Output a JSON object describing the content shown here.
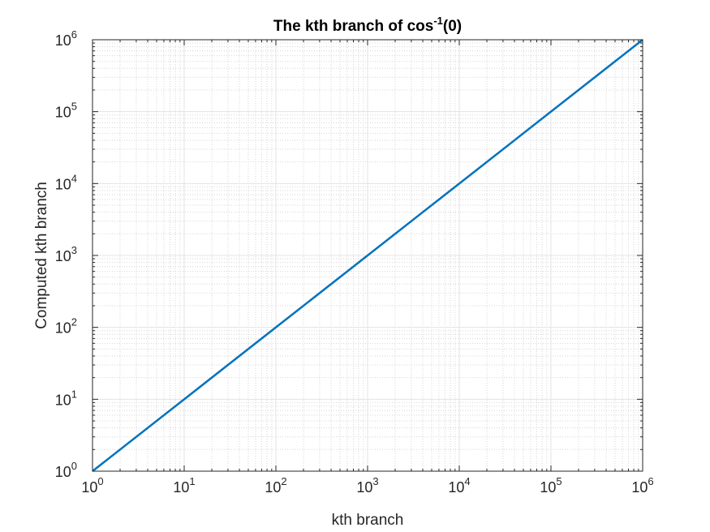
{
  "chart_data": {
    "type": "line",
    "title": "The kth branch of cos",
    "title_superscript": "-1",
    "title_suffix": "(0)",
    "xlabel": "kth branch",
    "ylabel": "Computed kth branch",
    "x_scale": "log",
    "y_scale": "log",
    "xlim": [
      1,
      1000000
    ],
    "ylim": [
      1,
      1000000
    ],
    "grid": true,
    "minor_grid": true,
    "legend": "none",
    "x_ticks": [
      {
        "base": "10",
        "exp": "0"
      },
      {
        "base": "10",
        "exp": "1"
      },
      {
        "base": "10",
        "exp": "2"
      },
      {
        "base": "10",
        "exp": "3"
      },
      {
        "base": "10",
        "exp": "4"
      },
      {
        "base": "10",
        "exp": "5"
      },
      {
        "base": "10",
        "exp": "6"
      }
    ],
    "y_ticks": [
      {
        "base": "10",
        "exp": "0"
      },
      {
        "base": "10",
        "exp": "1"
      },
      {
        "base": "10",
        "exp": "2"
      },
      {
        "base": "10",
        "exp": "3"
      },
      {
        "base": "10",
        "exp": "4"
      },
      {
        "base": "10",
        "exp": "5"
      },
      {
        "base": "10",
        "exp": "6"
      }
    ],
    "series": [
      {
        "color": "#0072BD",
        "x": [
          1,
          10,
          100,
          1000,
          10000,
          100000,
          1000000
        ],
        "y": [
          1,
          10,
          100,
          1000,
          10000,
          100000,
          1000000
        ]
      }
    ]
  }
}
